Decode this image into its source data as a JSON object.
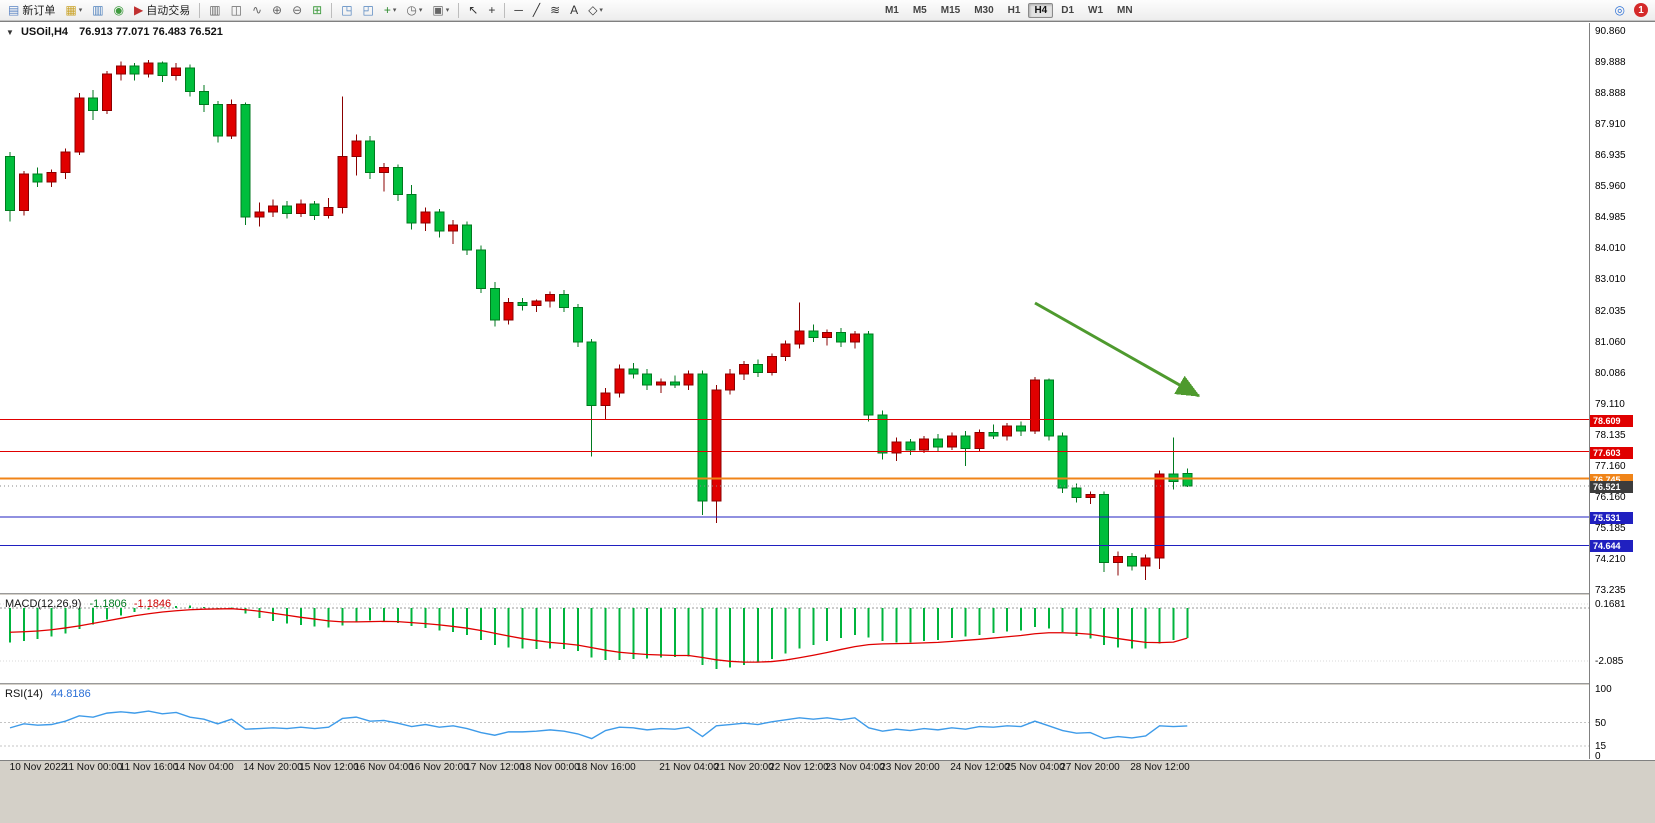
{
  "toolbar": {
    "items": [
      {
        "kind": "button",
        "name": "new-order-button",
        "glyph": "▤",
        "glyph_color": "#5b84c4",
        "label": "新订单"
      },
      {
        "kind": "button",
        "name": "profiles-button",
        "glyph": "▦",
        "glyph_color": "#c9a227",
        "arrow": true
      },
      {
        "kind": "button",
        "name": "market-watch-button",
        "glyph": "▥",
        "glyph_color": "#4f81bd"
      },
      {
        "kind": "button",
        "name": "navigator-button",
        "glyph": "◉",
        "glyph_color": "#3f9b3f"
      },
      {
        "kind": "button",
        "name": "auto-trading-button",
        "glyph": "▶",
        "glyph_color": "#c03030",
        "label": "自动交易"
      },
      {
        "kind": "sep"
      },
      {
        "kind": "button",
        "name": "bar-chart-button",
        "glyph": "▥",
        "glyph_color": "#666666"
      },
      {
        "kind": "button",
        "name": "candlestick-chart-button",
        "glyph": "◫",
        "glyph_color": "#666666"
      },
      {
        "kind": "button",
        "name": "line-chart-button",
        "glyph": "∿",
        "glyph_color": "#666666"
      },
      {
        "kind": "button",
        "name": "zoom-in-button",
        "glyph": "⊕",
        "glyph_color": "#666666"
      },
      {
        "kind": "button",
        "name": "zoom-out-button",
        "glyph": "⊖",
        "glyph_color": "#666666"
      },
      {
        "kind": "button",
        "name": "tile-windows-button",
        "glyph": "⊞",
        "glyph_color": "#3f9b3f"
      },
      {
        "kind": "sep"
      },
      {
        "kind": "button",
        "name": "indicators-list-button",
        "glyph": "◳",
        "glyph_color": "#4f81bd"
      },
      {
        "kind": "button",
        "name": "objects-list-button",
        "glyph": "◰",
        "glyph_color": "#4f81bd"
      },
      {
        "kind": "button",
        "name": "add-indicator-button",
        "glyph": "+",
        "glyph_color": "#2e8b2e",
        "arrow": true
      },
      {
        "kind": "button",
        "name": "periodicity-button",
        "glyph": "◷",
        "glyph_color": "#666666",
        "arrow": true
      },
      {
        "kind": "button",
        "name": "templates-button",
        "glyph": "▣",
        "glyph_color": "#666666",
        "arrow": true
      },
      {
        "kind": "sep"
      },
      {
        "kind": "button",
        "name": "cursor-button",
        "glyph": "↖",
        "glyph_color": "#333333"
      },
      {
        "kind": "button",
        "name": "crosshair-button",
        "glyph": "+",
        "glyph_color": "#333333"
      },
      {
        "kind": "sep"
      },
      {
        "kind": "button",
        "name": "horizontal-line-button",
        "glyph": "─",
        "glyph_color": "#333333"
      },
      {
        "kind": "button",
        "name": "trendline-button",
        "glyph": "╱",
        "glyph_color": "#333333"
      },
      {
        "kind": "button",
        "name": "fibonacci-button",
        "glyph": "≋",
        "glyph_color": "#333333"
      },
      {
        "kind": "button",
        "name": "text-tool-button",
        "glyph": "A",
        "glyph_color": "#333333"
      },
      {
        "kind": "button",
        "name": "shapes-button",
        "glyph": "◇",
        "glyph_color": "#333333",
        "arrow": true
      },
      {
        "kind": "gap"
      },
      {
        "kind": "tf-group"
      },
      {
        "kind": "flex"
      },
      {
        "kind": "button",
        "name": "search-button",
        "glyph": "◎",
        "glyph_color": "#2a6fd6"
      },
      {
        "kind": "badge",
        "name": "notifications-badge",
        "text": "1"
      }
    ],
    "timeframes": [
      "M1",
      "M5",
      "M15",
      "M30",
      "H1",
      "H4",
      "D1",
      "W1",
      "MN"
    ],
    "active_timeframe": "H4",
    "notification_count": "1"
  },
  "chart": {
    "collapse_glyph": "▼",
    "symbol_period": "USOil,H4",
    "ohlc_text": "76.913 77.071 76.483 76.521",
    "price_axis": {
      "max": 90.86,
      "min": 73.235,
      "labels": [
        "90.860",
        "89.888",
        "88.888",
        "87.910",
        "86.935",
        "85.960",
        "84.985",
        "84.010",
        "83.010",
        "82.035",
        "81.060",
        "80.086",
        "79.110",
        "78.135",
        "77.160",
        "76.160",
        "75.185",
        "74.210",
        "73.235"
      ]
    },
    "hlines": [
      {
        "price": 78.609,
        "label": "78.609",
        "color": "#e00000",
        "width": 1
      },
      {
        "price": 77.603,
        "label": "77.603",
        "color": "#e00000",
        "width": 1
      },
      {
        "price": 76.745,
        "label": "76.745",
        "color": "#f08418",
        "width": 2
      },
      {
        "price": 75.531,
        "label": "75.531",
        "color": "#2020c0",
        "width": 1
      },
      {
        "price": 74.644,
        "label": "74.644",
        "color": "#2020c0",
        "width": 1
      }
    ],
    "current_price": {
      "value": 76.521,
      "label": "76.521",
      "badge_color": "#3c3c3c"
    },
    "arrow": {
      "color": "#4e9a2e"
    },
    "candles": [
      [
        86.9,
        87.05,
        84.85,
        85.2
      ],
      [
        85.2,
        86.45,
        85.05,
        86.35
      ],
      [
        86.35,
        86.55,
        85.95,
        86.1
      ],
      [
        86.1,
        86.5,
        85.95,
        86.4
      ],
      [
        86.4,
        87.15,
        86.2,
        87.05
      ],
      [
        87.05,
        88.9,
        86.95,
        88.75
      ],
      [
        88.75,
        89.0,
        88.05,
        88.35
      ],
      [
        88.35,
        89.6,
        88.25,
        89.5
      ],
      [
        89.5,
        89.9,
        89.3,
        89.75
      ],
      [
        89.75,
        89.85,
        89.3,
        89.5
      ],
      [
        89.5,
        89.95,
        89.4,
        89.85
      ],
      [
        89.85,
        89.9,
        89.25,
        89.45
      ],
      [
        89.45,
        89.85,
        89.3,
        89.7
      ],
      [
        89.7,
        89.8,
        88.8,
        88.95
      ],
      [
        88.95,
        89.15,
        88.3,
        88.55
      ],
      [
        88.55,
        88.65,
        87.35,
        87.55
      ],
      [
        87.55,
        88.7,
        87.45,
        88.55
      ],
      [
        88.55,
        88.6,
        84.75,
        85.0
      ],
      [
        85.0,
        85.45,
        84.7,
        85.15
      ],
      [
        85.15,
        85.55,
        85.0,
        85.35
      ],
      [
        85.35,
        85.5,
        84.95,
        85.1
      ],
      [
        85.1,
        85.55,
        85.0,
        85.4
      ],
      [
        85.4,
        85.5,
        84.9,
        85.05
      ],
      [
        85.05,
        85.6,
        84.95,
        85.3
      ],
      [
        85.3,
        88.8,
        85.1,
        86.9
      ],
      [
        86.9,
        87.6,
        86.3,
        87.4
      ],
      [
        87.4,
        87.55,
        86.2,
        86.4
      ],
      [
        86.4,
        86.7,
        85.8,
        86.55
      ],
      [
        86.55,
        86.65,
        85.5,
        85.7
      ],
      [
        85.7,
        86.0,
        84.6,
        84.8
      ],
      [
        84.8,
        85.3,
        84.55,
        85.15
      ],
      [
        85.15,
        85.25,
        84.35,
        84.55
      ],
      [
        84.55,
        84.9,
        84.15,
        84.75
      ],
      [
        84.75,
        84.85,
        83.8,
        83.95
      ],
      [
        83.95,
        84.1,
        82.6,
        82.75
      ],
      [
        82.75,
        82.95,
        81.55,
        81.75
      ],
      [
        81.75,
        82.45,
        81.6,
        82.3
      ],
      [
        82.3,
        82.45,
        82.05,
        82.2
      ],
      [
        82.2,
        82.4,
        82.0,
        82.35
      ],
      [
        82.35,
        82.65,
        82.15,
        82.55
      ],
      [
        82.55,
        82.7,
        82.0,
        82.15
      ],
      [
        82.15,
        82.25,
        80.9,
        81.05
      ],
      [
        81.05,
        81.15,
        77.45,
        79.05
      ],
      [
        79.05,
        79.6,
        78.6,
        79.45
      ],
      [
        79.45,
        80.35,
        79.3,
        80.2
      ],
      [
        80.2,
        80.4,
        79.9,
        80.05
      ],
      [
        80.05,
        80.2,
        79.55,
        79.7
      ],
      [
        79.7,
        79.9,
        79.45,
        79.8
      ],
      [
        79.8,
        80.0,
        79.6,
        79.7
      ],
      [
        79.7,
        80.15,
        79.55,
        80.05
      ],
      [
        80.05,
        80.15,
        75.6,
        76.05
      ],
      [
        76.05,
        79.7,
        75.35,
        79.55
      ],
      [
        79.55,
        80.2,
        79.4,
        80.05
      ],
      [
        80.05,
        80.45,
        79.85,
        80.35
      ],
      [
        80.35,
        80.5,
        79.95,
        80.1
      ],
      [
        80.1,
        80.7,
        80.0,
        80.6
      ],
      [
        80.6,
        81.1,
        80.45,
        81.0
      ],
      [
        81.0,
        82.3,
        80.85,
        81.4
      ],
      [
        81.4,
        81.6,
        81.05,
        81.2
      ],
      [
        81.2,
        81.45,
        80.95,
        81.35
      ],
      [
        81.35,
        81.5,
        80.9,
        81.05
      ],
      [
        81.05,
        81.4,
        80.85,
        81.3
      ],
      [
        81.3,
        81.4,
        78.55,
        78.75
      ],
      [
        78.75,
        78.9,
        77.35,
        77.55
      ],
      [
        77.55,
        78.05,
        77.3,
        77.9
      ],
      [
        77.9,
        78.0,
        77.5,
        77.65
      ],
      [
        77.65,
        78.1,
        77.55,
        78.0
      ],
      [
        78.0,
        78.15,
        77.6,
        77.75
      ],
      [
        77.75,
        78.2,
        77.65,
        78.1
      ],
      [
        78.1,
        78.25,
        77.15,
        77.7
      ],
      [
        77.7,
        78.3,
        77.6,
        78.2
      ],
      [
        78.2,
        78.45,
        78.0,
        78.1
      ],
      [
        78.1,
        78.5,
        77.95,
        78.4
      ],
      [
        78.4,
        78.55,
        78.1,
        78.25
      ],
      [
        78.25,
        79.95,
        78.15,
        79.85
      ],
      [
        79.85,
        79.9,
        77.95,
        78.1
      ],
      [
        78.1,
        78.2,
        76.3,
        76.45
      ],
      [
        76.45,
        76.6,
        76.0,
        76.15
      ],
      [
        76.15,
        76.35,
        75.95,
        76.25
      ],
      [
        76.25,
        76.35,
        73.8,
        74.1
      ],
      [
        74.1,
        74.45,
        73.7,
        74.3
      ],
      [
        74.3,
        74.4,
        73.85,
        74.0
      ],
      [
        74.0,
        74.35,
        73.55,
        74.25
      ],
      [
        74.25,
        77.0,
        73.9,
        76.9
      ],
      [
        76.9,
        78.05,
        76.4,
        76.65
      ],
      [
        76.913,
        77.071,
        76.483,
        76.521
      ]
    ],
    "time_labels": [
      {
        "i": 2,
        "t": "10 Nov 2022"
      },
      {
        "i": 6,
        "t": "11 Nov 00:00"
      },
      {
        "i": 10,
        "t": "11 Nov 16:00"
      },
      {
        "i": 14,
        "t": "14 Nov 04:00"
      },
      {
        "i": 19,
        "t": "14 Nov 20:00"
      },
      {
        "i": 23,
        "t": "15 Nov 12:00"
      },
      {
        "i": 27,
        "t": "16 Nov 04:00"
      },
      {
        "i": 31,
        "t": "16 Nov 20:00"
      },
      {
        "i": 35,
        "t": "17 Nov 12:00"
      },
      {
        "i": 39,
        "t": "18 Nov 00:00"
      },
      {
        "i": 43,
        "t": "18 Nov 16:00"
      },
      {
        "i": 49,
        "t": "21 Nov 04:00"
      },
      {
        "i": 53,
        "t": "21 Nov 20:00"
      },
      {
        "i": 57,
        "t": "22 Nov 12:00"
      },
      {
        "i": 61,
        "t": "23 Nov 04:00"
      },
      {
        "i": 65,
        "t": "23 Nov 20:00"
      },
      {
        "i": 70,
        "t": "24 Nov 12:00"
      },
      {
        "i": 74,
        "t": "25 Nov 04:00"
      },
      {
        "i": 78,
        "t": "27 Nov 20:00"
      },
      {
        "i": 83,
        "t": "28 Nov 12:00"
      }
    ]
  },
  "macd": {
    "name_label": "MACD(12,26,9)",
    "value_main": "-1.1806",
    "value_signal": "-1.1846",
    "axis_labels": [
      {
        "v": 0.1681,
        "t": "0.1681"
      },
      {
        "v": -2.085,
        "t": "-2.085"
      }
    ],
    "histogram": [
      -1.35,
      -1.3,
      -1.22,
      -1.12,
      -1.0,
      -0.82,
      -0.65,
      -0.45,
      -0.28,
      -0.15,
      -0.05,
      0.02,
      0.08,
      0.1,
      0.05,
      -0.02,
      0.03,
      -0.2,
      -0.38,
      -0.5,
      -0.6,
      -0.66,
      -0.72,
      -0.76,
      -0.68,
      -0.55,
      -0.48,
      -0.5,
      -0.58,
      -0.7,
      -0.78,
      -0.88,
      -0.95,
      -1.05,
      -1.25,
      -1.45,
      -1.55,
      -1.6,
      -1.62,
      -1.6,
      -1.62,
      -1.7,
      -1.95,
      -2.05,
      -2.05,
      -2.0,
      -1.98,
      -1.95,
      -1.92,
      -1.9,
      -2.25,
      -2.4,
      -2.35,
      -2.25,
      -2.15,
      -2.0,
      -1.8,
      -1.6,
      -1.45,
      -1.3,
      -1.18,
      -1.05,
      -1.15,
      -1.3,
      -1.35,
      -1.35,
      -1.3,
      -1.25,
      -1.18,
      -1.12,
      -1.05,
      -0.98,
      -0.92,
      -0.88,
      -0.75,
      -0.8,
      -0.95,
      -1.1,
      -1.2,
      -1.45,
      -1.55,
      -1.6,
      -1.6,
      -1.4,
      -1.25,
      -1.1806
    ],
    "signal": [
      -0.95,
      -0.93,
      -0.9,
      -0.85,
      -0.78,
      -0.7,
      -0.6,
      -0.5,
      -0.4,
      -0.3,
      -0.22,
      -0.15,
      -0.1,
      -0.06,
      -0.04,
      -0.03,
      -0.02,
      -0.06,
      -0.12,
      -0.2,
      -0.28,
      -0.36,
      -0.43,
      -0.5,
      -0.54,
      -0.54,
      -0.53,
      -0.52,
      -0.53,
      -0.57,
      -0.61,
      -0.66,
      -0.72,
      -0.79,
      -0.88,
      -0.99,
      -1.1,
      -1.2,
      -1.28,
      -1.35,
      -1.4,
      -1.46,
      -1.56,
      -1.66,
      -1.74,
      -1.79,
      -1.83,
      -1.85,
      -1.87,
      -1.87,
      -1.95,
      -2.04,
      -2.1,
      -2.13,
      -2.13,
      -2.11,
      -2.05,
      -1.96,
      -1.86,
      -1.75,
      -1.63,
      -1.52,
      -1.44,
      -1.41,
      -1.4,
      -1.39,
      -1.37,
      -1.35,
      -1.31,
      -1.27,
      -1.23,
      -1.18,
      -1.13,
      -1.08,
      -1.01,
      -0.97,
      -0.97,
      -0.99,
      -1.03,
      -1.12,
      -1.2,
      -1.28,
      -1.35,
      -1.36,
      -1.34,
      -1.1846
    ]
  },
  "rsi": {
    "name_label": "RSI(14)",
    "value": "44.8186",
    "axis_labels": [
      {
        "v": 100,
        "t": "100"
      },
      {
        "v": 50,
        "t": "50"
      },
      {
        "v": 15,
        "t": "15"
      },
      {
        "v": 0,
        "t": "0"
      }
    ],
    "levels": [
      50,
      15
    ],
    "values": [
      42,
      48,
      46,
      47,
      52,
      60,
      58,
      64,
      66,
      64,
      67,
      63,
      65,
      58,
      55,
      48,
      55,
      40,
      41,
      42,
      41,
      43,
      41,
      43,
      56,
      58,
      52,
      53,
      49,
      44,
      47,
      43,
      45,
      41,
      35,
      31,
      36,
      36,
      37,
      39,
      37,
      33,
      26,
      38,
      43,
      42,
      39,
      41,
      40,
      43,
      29,
      45,
      47,
      49,
      47,
      51,
      54,
      57,
      55,
      57,
      54,
      57,
      42,
      37,
      40,
      38,
      41,
      39,
      42,
      40,
      44,
      43,
      45,
      44,
      52,
      45,
      38,
      34,
      35,
      26,
      29,
      27,
      30,
      45,
      44,
      44.8186
    ]
  },
  "colors": {
    "candle_up": "#e00000",
    "candle_up_border": "#8b0000",
    "candle_down": "#00be3c",
    "candle_down_border": "#007a1f",
    "macd_histogram": "#00b43c",
    "macd_signal": "#e00000",
    "rsi_line": "#3e9be9"
  }
}
